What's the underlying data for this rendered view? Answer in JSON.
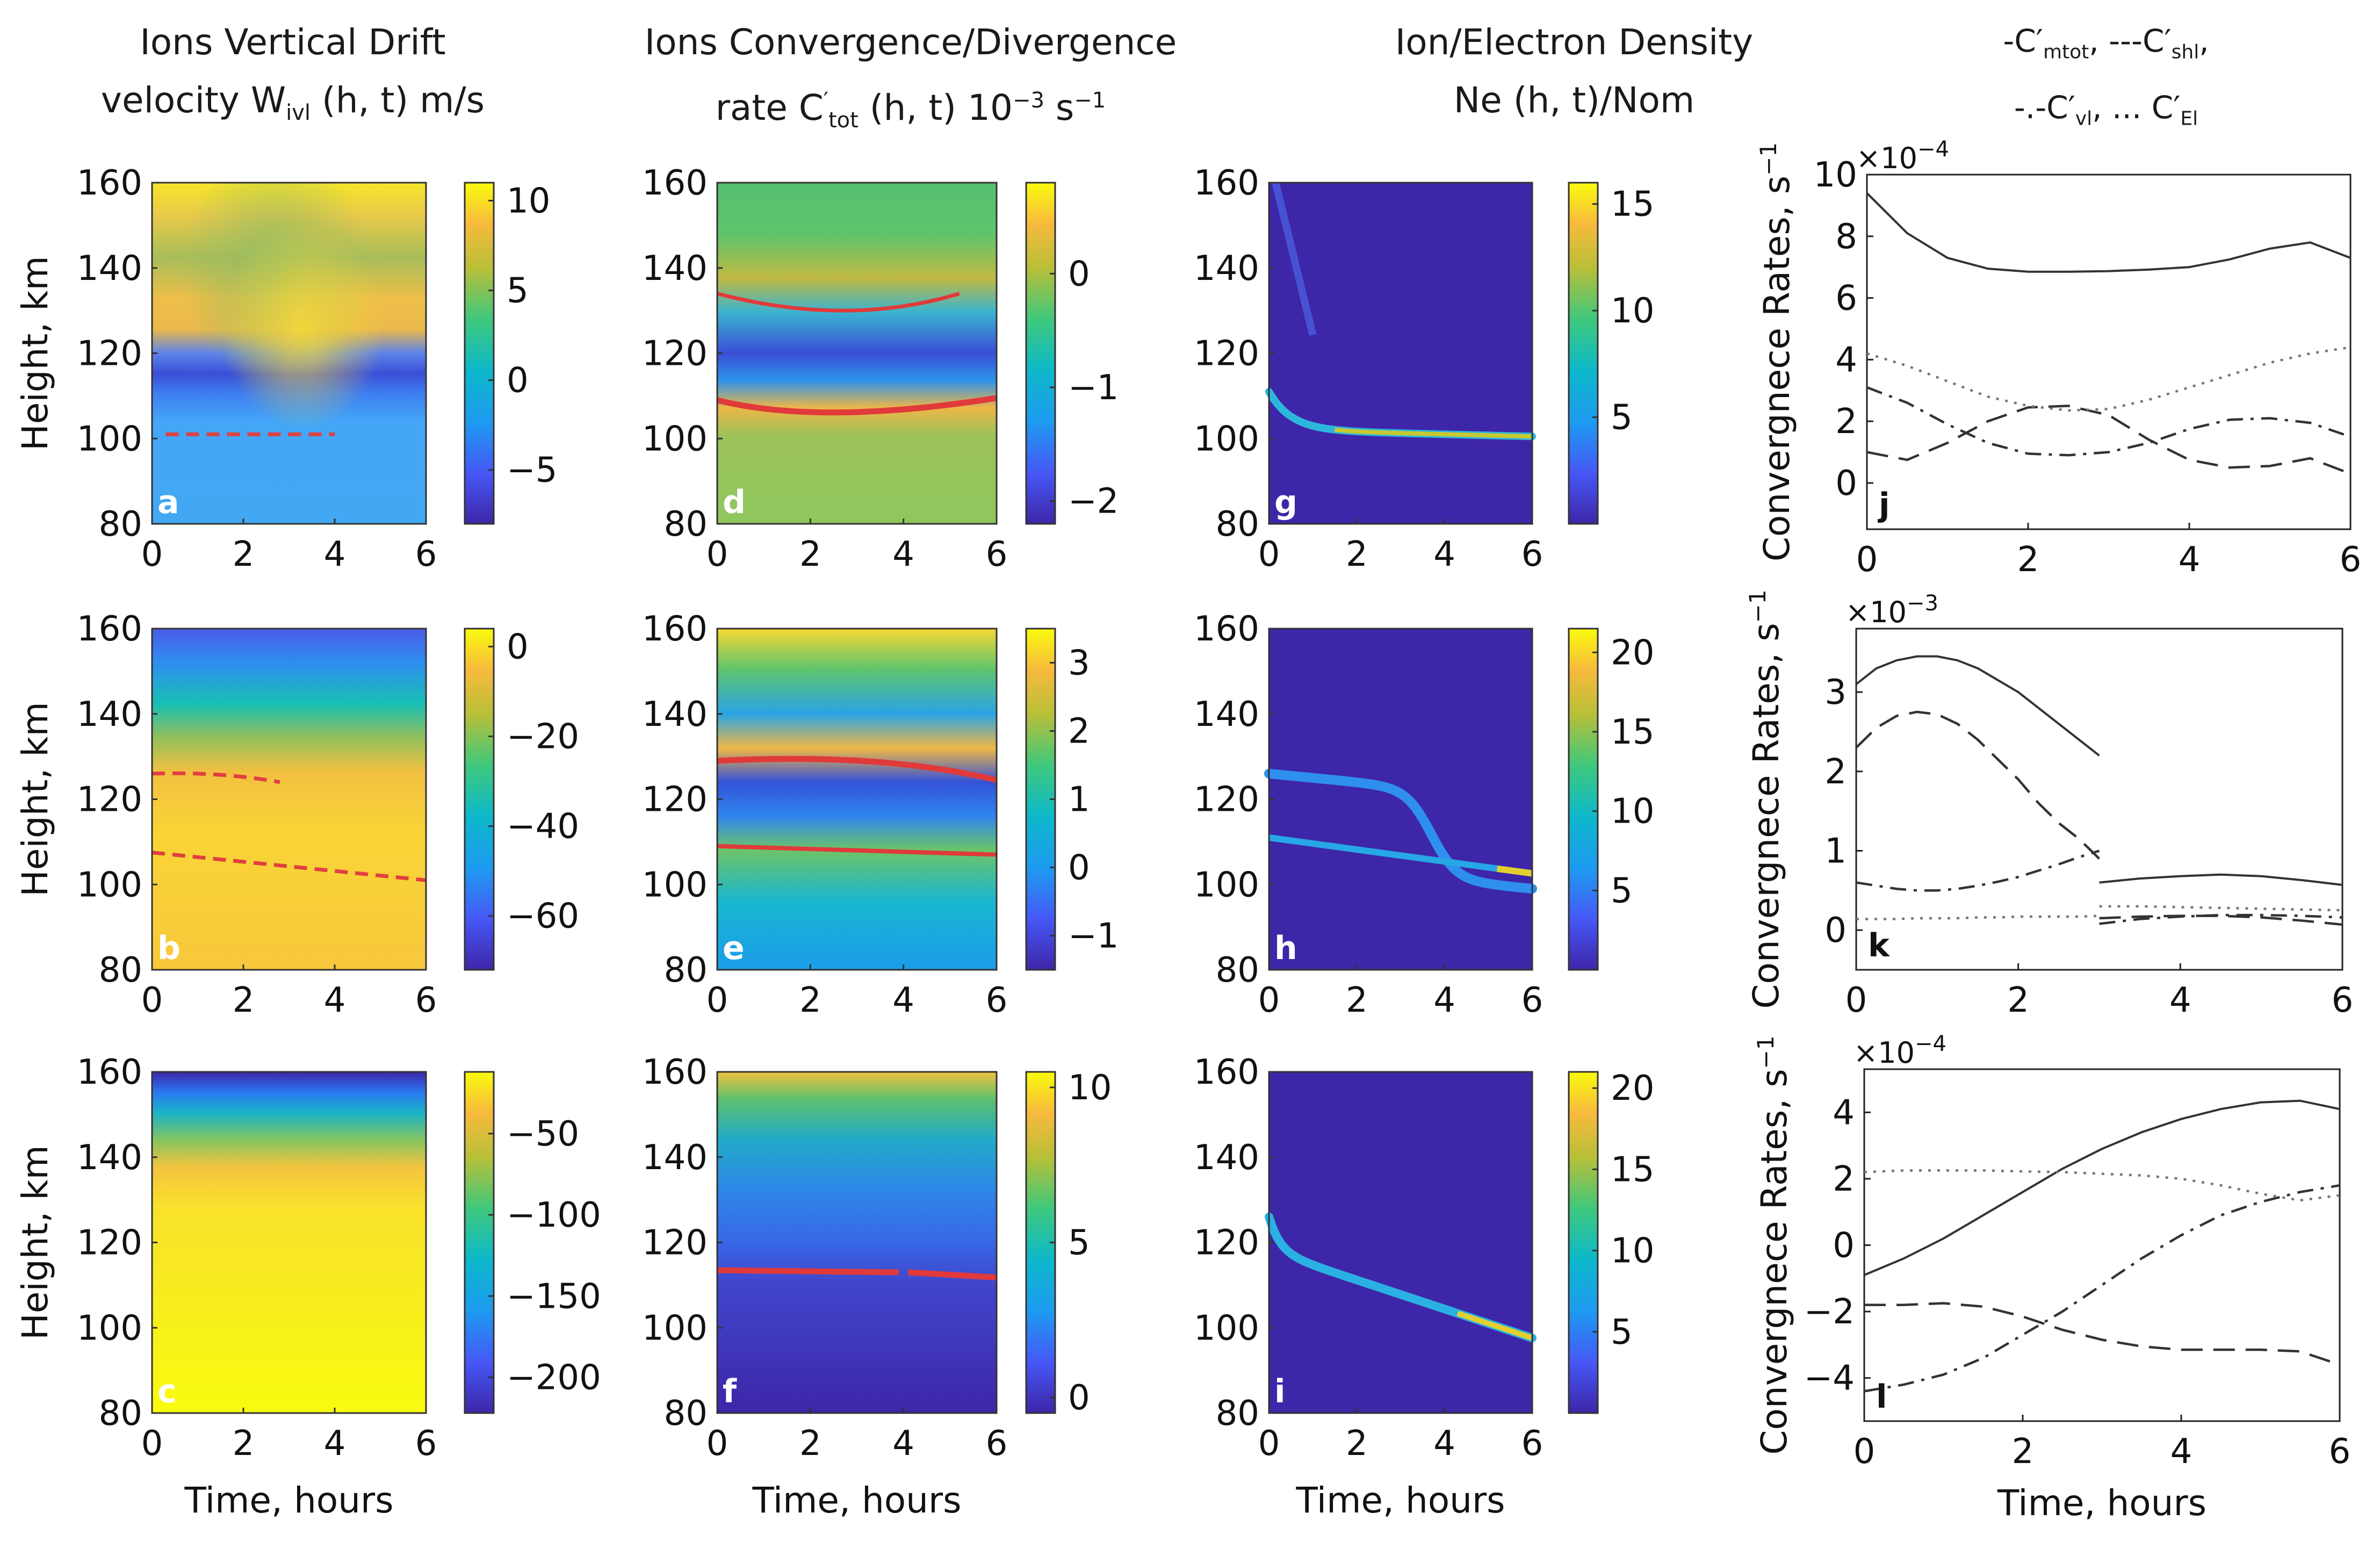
{
  "chart_data": {
    "type": "heatmap",
    "column_titles": {
      "drift": {
        "line1": "Ions Vertical Drift",
        "line2_pre": "velocity W",
        "line2_sub": "ivl",
        "line2_post": " (h, t) m/s"
      },
      "conv": {
        "line1": "Ions Convergence/Divergence",
        "line2_pre": "rate C",
        "line2_prime": "′",
        "line2_sub": "tot",
        "line2_mid": " (h, t) 10",
        "line2_sup": "−3",
        "line2_post": " s",
        "line2_sup2": "−1"
      },
      "dens": {
        "line1": "Ion/Electron Density",
        "line2": "Ne (h, t)/Nom"
      },
      "lines": {
        "line1a": "-C′",
        "line1a_sub": "mtot",
        "line1b": ", ---C′",
        "line1b_sub": "shl",
        "line1c": ",",
        "line2a": "-.-C′",
        "line2a_sub": "vl",
        "line2b": ", ... C′",
        "line2b_sub": "El"
      }
    },
    "heatmap_axes": {
      "xlabel": "Time, hours",
      "ylabel": "Height, km",
      "x_range": [
        0,
        6
      ],
      "y_range": [
        80,
        160
      ],
      "x_ticks": [
        "0",
        "2",
        "4",
        "6"
      ],
      "y_ticks": [
        "80",
        "100",
        "120",
        "140",
        "160"
      ]
    },
    "heatmaps": [
      {
        "id": "a",
        "letter": "a",
        "quantity": "drift",
        "colorbar_ticks": [
          {
            "label": "10",
            "value": 10
          },
          {
            "label": "5",
            "value": 5
          },
          {
            "label": "0",
            "value": 0
          },
          {
            "label": "−5",
            "value": -5
          }
        ],
        "clim": [
          -8,
          11
        ]
      },
      {
        "id": "b",
        "letter": "b",
        "quantity": "drift",
        "colorbar_ticks": [
          {
            "label": "0",
            "value": 0
          },
          {
            "label": "−20",
            "value": -20
          },
          {
            "label": "−40",
            "value": -40
          },
          {
            "label": "−60",
            "value": -60
          }
        ],
        "clim": [
          -72,
          4
        ]
      },
      {
        "id": "c",
        "letter": "c",
        "quantity": "drift",
        "colorbar_ticks": [
          {
            "label": "−50",
            "value": -50
          },
          {
            "label": "−100",
            "value": -100
          },
          {
            "label": "−150",
            "value": -150
          },
          {
            "label": "−200",
            "value": -200
          }
        ],
        "clim": [
          -222,
          -12
        ]
      },
      {
        "id": "d",
        "letter": "d",
        "quantity": "conv",
        "colorbar_ticks": [
          {
            "label": "0",
            "value": 0
          },
          {
            "label": "−1",
            "value": -1
          },
          {
            "label": "−2",
            "value": -2
          }
        ],
        "clim": [
          -2.2,
          0.8
        ]
      },
      {
        "id": "e",
        "letter": "e",
        "quantity": "conv",
        "colorbar_ticks": [
          {
            "label": "3",
            "value": 3
          },
          {
            "label": "2",
            "value": 2
          },
          {
            "label": "1",
            "value": 1
          },
          {
            "label": "0",
            "value": 0
          },
          {
            "label": "−1",
            "value": -1
          }
        ],
        "clim": [
          -1.5,
          3.5
        ]
      },
      {
        "id": "f",
        "letter": "f",
        "quantity": "conv",
        "colorbar_ticks": [
          {
            "label": "10",
            "value": 10
          },
          {
            "label": "5",
            "value": 5
          },
          {
            "label": "0",
            "value": 0
          }
        ],
        "clim": [
          -0.5,
          10.5
        ]
      },
      {
        "id": "g",
        "letter": "g",
        "quantity": "dens",
        "colorbar_ticks": [
          {
            "label": "15",
            "value": 15
          },
          {
            "label": "10",
            "value": 10
          },
          {
            "label": "5",
            "value": 5
          }
        ],
        "clim": [
          0,
          16
        ]
      },
      {
        "id": "h",
        "letter": "h",
        "quantity": "dens",
        "colorbar_ticks": [
          {
            "label": "20",
            "value": 20
          },
          {
            "label": "15",
            "value": 15
          },
          {
            "label": "10",
            "value": 10
          },
          {
            "label": "5",
            "value": 5
          }
        ],
        "clim": [
          0,
          21.5
        ]
      },
      {
        "id": "i",
        "letter": "i",
        "quantity": "dens",
        "colorbar_ticks": [
          {
            "label": "20",
            "value": 20
          },
          {
            "label": "15",
            "value": 15
          },
          {
            "label": "10",
            "value": 10
          },
          {
            "label": "5",
            "value": 5
          }
        ],
        "clim": [
          0,
          21
        ]
      }
    ],
    "line_plots": [
      {
        "id": "j",
        "letter": "j",
        "type": "line",
        "ylabel": "Convergnece Rates, s",
        "ylabel_sup": "−1",
        "exponent_base": "×10",
        "exponent_power": "−4",
        "xlabel": "",
        "xlim": [
          0,
          6
        ],
        "ylim": [
          -1.5,
          10
        ],
        "x_ticks": [
          0,
          2,
          4,
          6
        ],
        "y_ticks": [
          0,
          2,
          4,
          6,
          8,
          10
        ],
        "x": [
          0,
          0.5,
          1,
          1.5,
          2,
          2.5,
          3,
          3.5,
          4,
          4.5,
          5,
          5.5,
          6
        ],
        "series": [
          {
            "name": "C′mtot",
            "style": "solid",
            "values": [
              9.4,
              8.1,
              7.3,
              6.95,
              6.85,
              6.85,
              6.87,
              6.92,
              7.0,
              7.25,
              7.6,
              7.8,
              7.3
            ]
          },
          {
            "name": "C′shl",
            "style": "dashed",
            "values": [
              1.0,
              0.75,
              1.3,
              2.0,
              2.45,
              2.5,
              2.2,
              1.4,
              0.75,
              0.5,
              0.55,
              0.8,
              0.3
            ]
          },
          {
            "name": "C′vl",
            "style": "dashdot",
            "values": [
              3.1,
              2.6,
              1.9,
              1.3,
              0.95,
              0.9,
              1.0,
              1.3,
              1.75,
              2.05,
              2.1,
              1.95,
              1.5
            ]
          },
          {
            "name": "C′El",
            "style": "dotted",
            "values": [
              4.2,
              3.8,
              3.3,
              2.8,
              2.5,
              2.35,
              2.4,
              2.7,
              3.1,
              3.5,
              3.9,
              4.2,
              4.4
            ]
          }
        ]
      },
      {
        "id": "k",
        "letter": "k",
        "type": "line",
        "ylabel": "Convergnece Rates, s",
        "ylabel_sup": "−1",
        "exponent_base": "×10",
        "exponent_power": "−3",
        "xlabel": "",
        "xlim": [
          0,
          6
        ],
        "ylim": [
          -0.5,
          3.8
        ],
        "x_ticks": [
          0,
          2,
          4,
          6
        ],
        "y_ticks": [
          0,
          1,
          2,
          3
        ],
        "x_left": [
          0,
          0.25,
          0.5,
          0.75,
          1,
          1.25,
          1.5,
          1.75,
          2,
          2.25,
          2.5,
          2.75,
          3
        ],
        "x_right": [
          3,
          3.5,
          4,
          4.5,
          5,
          5.5,
          6
        ],
        "series": [
          {
            "name": "C′mtot",
            "style": "solid",
            "left": [
              3.1,
              3.3,
              3.4,
              3.45,
              3.45,
              3.4,
              3.3,
              3.15,
              3.0,
              2.8,
              2.6,
              2.4,
              2.2
            ],
            "right": [
              0.6,
              0.65,
              0.68,
              0.7,
              0.68,
              0.63,
              0.57
            ]
          },
          {
            "name": "C′shl",
            "style": "dashed",
            "left": [
              2.3,
              2.55,
              2.7,
              2.75,
              2.72,
              2.6,
              2.4,
              2.15,
              1.9,
              1.6,
              1.35,
              1.15,
              0.9
            ],
            "right": [
              0.15,
              0.17,
              0.18,
              0.18,
              0.16,
              0.12,
              0.07
            ]
          },
          {
            "name": "C′vl",
            "style": "dashdot",
            "left": [
              0.6,
              0.56,
              0.52,
              0.5,
              0.5,
              0.52,
              0.56,
              0.61,
              0.67,
              0.75,
              0.83,
              0.92,
              1.0
            ],
            "right": [
              0.08,
              0.14,
              0.17,
              0.19,
              0.19,
              0.18,
              0.16
            ]
          },
          {
            "name": "C′El",
            "style": "dotted",
            "left": [
              0.14,
              0.14,
              0.14,
              0.15,
              0.15,
              0.15,
              0.16,
              0.16,
              0.17,
              0.17,
              0.17,
              0.17,
              0.18
            ],
            "right": [
              0.3,
              0.3,
              0.29,
              0.28,
              0.27,
              0.26,
              0.25
            ]
          }
        ]
      },
      {
        "id": "l",
        "letter": "l",
        "type": "line",
        "ylabel": "Convergnece Rates, s",
        "ylabel_sup": "−1",
        "exponent_base": "×10",
        "exponent_power": "−4",
        "xlabel": "Time, hours",
        "xlim": [
          0,
          6
        ],
        "ylim": [
          -5.3,
          5.3
        ],
        "x_ticks": [
          0,
          2,
          4,
          6
        ],
        "y_ticks": [
          -4,
          -2,
          0,
          2,
          4
        ],
        "x": [
          0,
          0.5,
          1,
          1.5,
          2,
          2.5,
          3,
          3.5,
          4,
          4.5,
          5,
          5.5,
          6
        ],
        "series": [
          {
            "name": "C′mtot",
            "style": "solid",
            "values": [
              -0.9,
              -0.4,
              0.2,
              0.9,
              1.6,
              2.3,
              2.9,
              3.4,
              3.8,
              4.1,
              4.3,
              4.35,
              4.1
            ]
          },
          {
            "name": "C′shl",
            "style": "dashed",
            "values": [
              -1.8,
              -1.8,
              -1.75,
              -1.85,
              -2.15,
              -2.55,
              -2.85,
              -3.05,
              -3.15,
              -3.15,
              -3.15,
              -3.2,
              -3.6
            ]
          },
          {
            "name": "C′vl",
            "style": "dashdot",
            "values": [
              -4.4,
              -4.2,
              -3.9,
              -3.4,
              -2.7,
              -2.0,
              -1.2,
              -0.4,
              0.3,
              0.9,
              1.3,
              1.6,
              1.8
            ]
          },
          {
            "name": "C′El",
            "style": "dotted",
            "values": [
              2.2,
              2.25,
              2.25,
              2.25,
              2.22,
              2.2,
              2.15,
              2.1,
              2.0,
              1.8,
              1.55,
              1.35,
              1.5
            ]
          }
        ]
      }
    ]
  }
}
